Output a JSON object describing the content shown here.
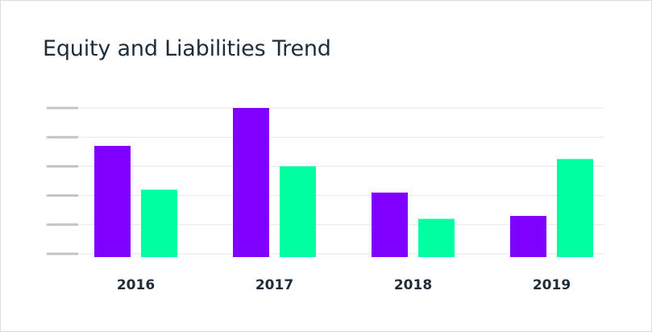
{
  "chart_data": {
    "type": "bar",
    "title": "Equity and Liabilities Trend",
    "categories": [
      "2016",
      "2017",
      "2018",
      "2019"
    ],
    "series": [
      {
        "values": [
          3.7,
          5.0,
          2.1,
          1.3
        ],
        "color": "#8000ff"
      },
      {
        "values": [
          2.2,
          3.0,
          1.2,
          3.25
        ],
        "color": "#00ffa0"
      }
    ],
    "ylim": [
      0,
      5
    ],
    "ytick_count": 6,
    "grid": true,
    "tick_color": "#c4c4c4",
    "grid_color": "#e6e6e6"
  }
}
